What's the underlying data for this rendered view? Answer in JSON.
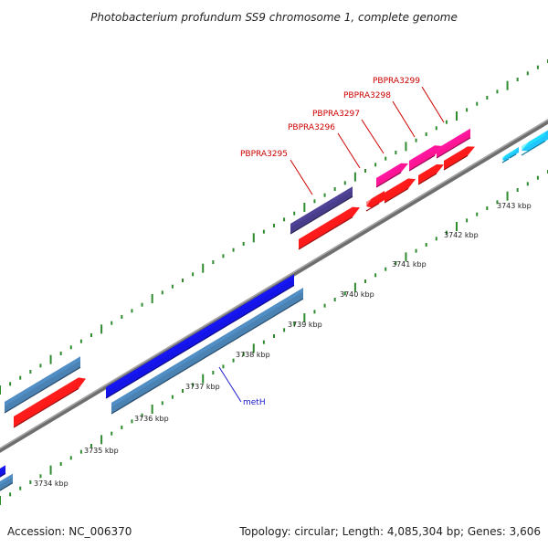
{
  "title": "Photobacterium profundum SS9 chromosome 1, complete genome",
  "footer": {
    "accession": "Accession: NC_006370",
    "topology": "Topology: circular; Length: 4,085,304 bp; Genes: 3,606"
  },
  "kbp_labels": [
    "3734 kbp",
    "3735 kbp",
    "3736 kbp",
    "3737 kbp",
    "3738 kbp",
    "3739 kbp",
    "3740 kbp",
    "3741 kbp",
    "3742 kbp",
    "3743 kbp"
  ],
  "gene_labels": [
    {
      "text": "PBPRA3295",
      "color": "#cc0000"
    },
    {
      "text": "PBPRA3296",
      "color": "#cc0000"
    },
    {
      "text": "PBPRA3297",
      "color": "#cc0000"
    },
    {
      "text": "PBPRA3298",
      "color": "#cc0000"
    },
    {
      "text": "PBPRA3299",
      "color": "#cc0000"
    },
    {
      "text": "metH",
      "color": "#1a1acc"
    }
  ],
  "colors": {
    "backbone": "#8a8a8a",
    "tick": "#2e8b2e",
    "red_gene": "#ff1a1a",
    "steel_gene": "#4a82b4",
    "blue_gene": "#1414e6",
    "navy_gene": "#483d8b",
    "pink_gene": "#ff1493",
    "cyan_gene": "#1ec8ff"
  }
}
